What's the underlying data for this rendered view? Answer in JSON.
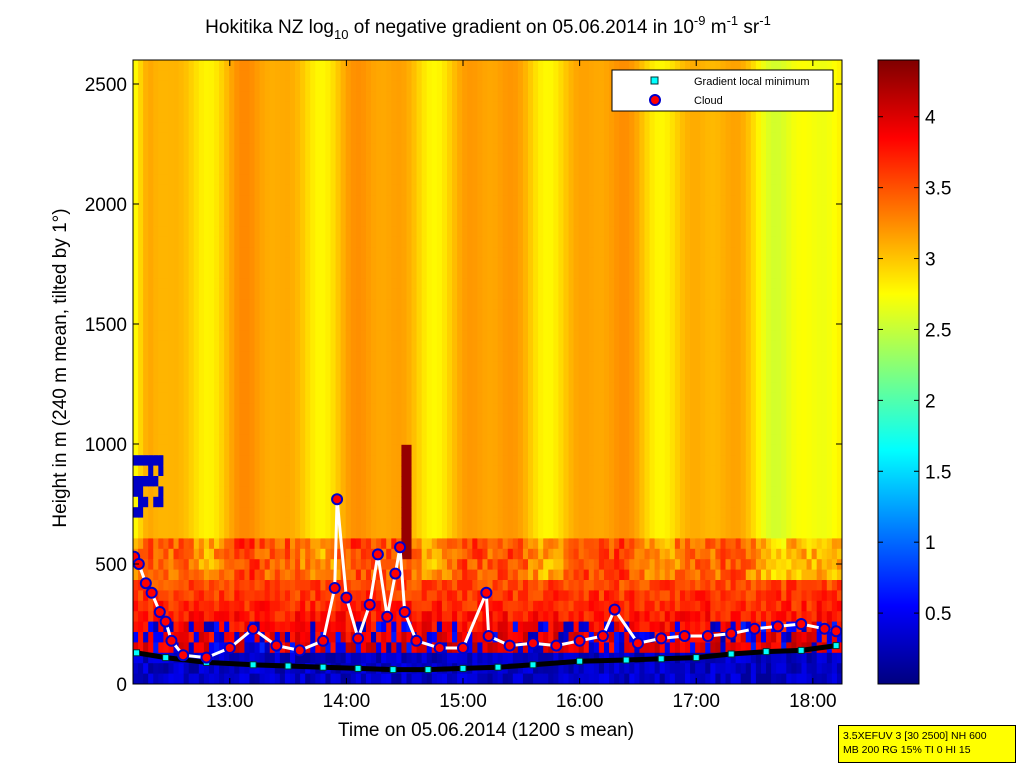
{
  "chart_data": {
    "type": "heatmap",
    "title": {
      "prefix": "Hokitika NZ log",
      "prefix_sub": "10",
      "middle": " of negative gradient on 05.06.2014 in 10",
      "exp1": "-9",
      "mid2": " m",
      "exp2": "-1",
      "mid3": " sr",
      "exp3": "-1"
    },
    "xlabel": "Time on 05.06.2014 (1200 s mean)",
    "ylabel": "Height in m (240 m mean, tilted by 1°)",
    "x_range_hours": [
      12.17,
      18.25
    ],
    "ylim": [
      0,
      2600
    ],
    "x_ticks": [
      {
        "label": "13:00",
        "value": 13
      },
      {
        "label": "14:00",
        "value": 14
      },
      {
        "label": "15:00",
        "value": 15
      },
      {
        "label": "16:00",
        "value": 16
      },
      {
        "label": "17:00",
        "value": 17
      },
      {
        "label": "18:00",
        "value": 18
      }
    ],
    "y_ticks": [
      {
        "label": "0",
        "value": 0
      },
      {
        "label": "500",
        "value": 500
      },
      {
        "label": "1000",
        "value": 1000
      },
      {
        "label": "1500",
        "value": 1500
      },
      {
        "label": "2000",
        "value": 2000
      },
      {
        "label": "2500",
        "value": 2500
      }
    ],
    "colorbar": {
      "range": [
        0,
        4.4
      ],
      "ticks": [
        {
          "label": "0.5",
          "value": 0.5
        },
        {
          "label": "1",
          "value": 1
        },
        {
          "label": "1.5",
          "value": 1.5
        },
        {
          "label": "2",
          "value": 2
        },
        {
          "label": "2.5",
          "value": 2.5
        },
        {
          "label": "3",
          "value": 3
        },
        {
          "label": "3.5",
          "value": 3.5
        },
        {
          "label": "4",
          "value": 4
        }
      ],
      "colormap": [
        "#00007f",
        "#0000ff",
        "#007fff",
        "#00ffff",
        "#7fff7f",
        "#ffff00",
        "#ff7f00",
        "#ff0000",
        "#7f0000"
      ]
    },
    "legend": {
      "placement": "top-right",
      "entries": [
        {
          "label": "Gradient local minimum",
          "marker": "square",
          "color": "#00ffff"
        },
        {
          "label": "Cloud",
          "marker": "circle",
          "color": "#ff0000"
        }
      ]
    },
    "series": [
      {
        "name": "Gradient local minimum",
        "x": [
          12.2,
          12.45,
          12.8,
          13.2,
          13.5,
          13.8,
          14.1,
          14.4,
          14.7,
          15.0,
          15.3,
          15.6,
          16.0,
          16.4,
          16.7,
          17.0,
          17.3,
          17.6,
          17.9,
          18.2
        ],
        "y": [
          130,
          110,
          90,
          80,
          75,
          70,
          65,
          60,
          60,
          65,
          70,
          80,
          95,
          100,
          105,
          110,
          125,
          135,
          140,
          160
        ]
      },
      {
        "name": "Cloud",
        "x": [
          12.18,
          12.22,
          12.28,
          12.33,
          12.4,
          12.45,
          12.5,
          12.6,
          12.8,
          13.0,
          13.2,
          13.4,
          13.6,
          13.8,
          13.9,
          13.92,
          14.0,
          14.1,
          14.2,
          14.27,
          14.35,
          14.42,
          14.46,
          14.5,
          14.6,
          14.8,
          15.0,
          15.2,
          15.22,
          15.4,
          15.6,
          15.8,
          16.0,
          16.2,
          16.3,
          16.5,
          16.7,
          16.9,
          17.1,
          17.3,
          17.5,
          17.7,
          17.9,
          18.1,
          18.2
        ],
        "y": [
          530,
          500,
          420,
          380,
          300,
          260,
          180,
          120,
          110,
          150,
          230,
          160,
          140,
          180,
          400,
          770,
          360,
          190,
          330,
          540,
          280,
          460,
          570,
          300,
          180,
          150,
          150,
          380,
          200,
          160,
          170,
          160,
          180,
          200,
          310,
          170,
          190,
          200,
          200,
          210,
          230,
          240,
          250,
          230,
          220
        ]
      }
    ]
  },
  "info_box": {
    "line1": "3.5XEFUV 3 [30 2500] NH 600",
    "line2": "MB 200 RG 15% TI 0 HI 15"
  }
}
